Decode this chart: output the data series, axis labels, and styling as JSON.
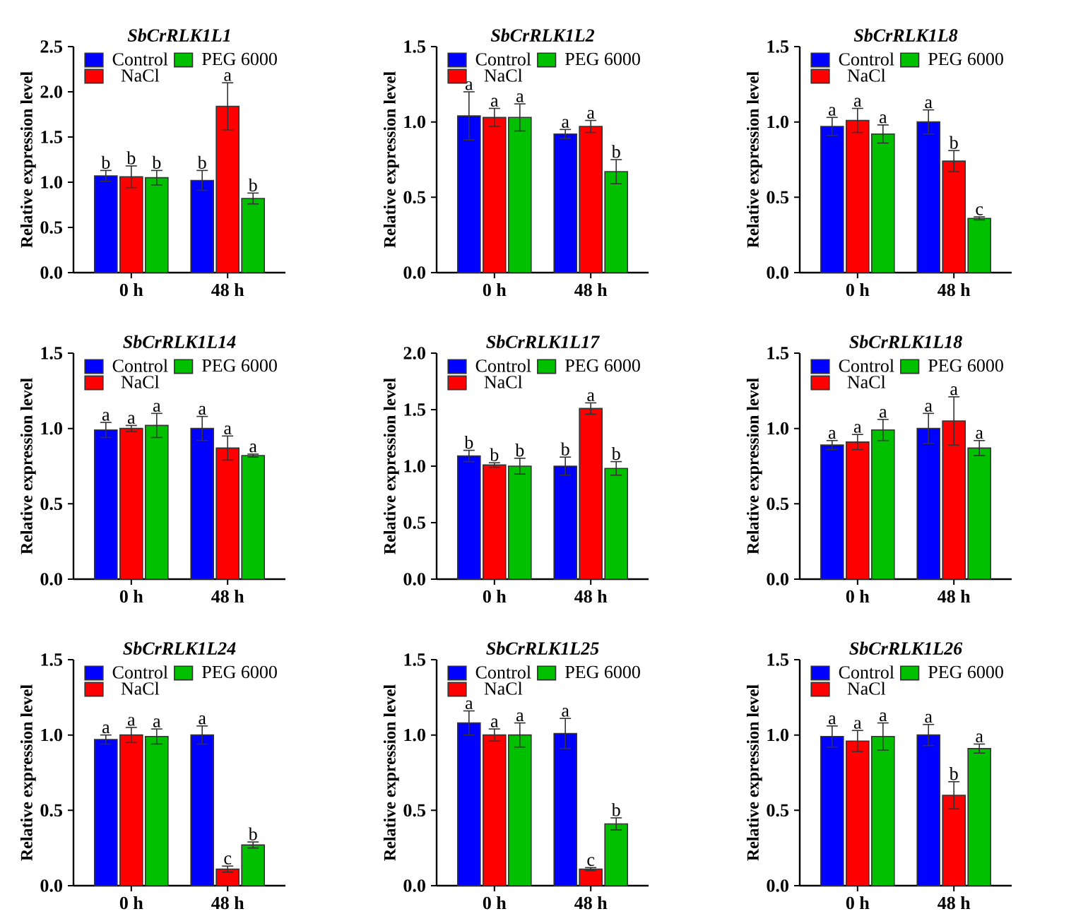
{
  "chart_data": [
    {
      "type": "bar",
      "title": "SbCrRLK1L1",
      "ylabel": "Relative expression level",
      "categories": [
        "0 h",
        "48 h"
      ],
      "ylim": [
        0,
        2.5
      ],
      "yticks": [
        {
          "value": 0,
          "label": "0.0"
        },
        0.5,
        {
          "value": 1,
          "label": "1.0"
        },
        1.5,
        {
          "value": 2,
          "label": "2.0"
        },
        2.5
      ],
      "legend": "top left",
      "series": [
        {
          "name": "Control",
          "color": "#0000ff",
          "values": [
            1.07,
            1.02
          ],
          "errors": [
            0.06,
            0.11
          ]
        },
        {
          "name": "NaCl",
          "color": "#ff0000",
          "values": [
            1.06,
            1.84
          ],
          "errors": [
            0.12,
            0.26
          ]
        },
        {
          "name": "PEG 6000",
          "color": "#00c000",
          "values": [
            1.05,
            0.82
          ],
          "errors": [
            0.08,
            0.06
          ]
        }
      ],
      "annotations": [
        "b",
        "b",
        "b",
        "b",
        "a",
        "b"
      ]
    },
    {
      "type": "bar",
      "title": "SbCrRLK1L2",
      "ylabel": "Relative expression level",
      "categories": [
        "0 h",
        "48 h"
      ],
      "ylim": [
        0,
        1.5
      ],
      "yticks": [
        {
          "value": 0,
          "label": "0.0"
        },
        0.5,
        {
          "value": 1,
          "label": "1.0"
        },
        1.5
      ],
      "legend": "top left",
      "series": [
        {
          "name": "Control",
          "color": "#0000ff",
          "values": [
            1.04,
            0.92
          ],
          "errors": [
            0.16,
            0.03
          ]
        },
        {
          "name": "NaCl",
          "color": "#ff0000",
          "values": [
            1.03,
            0.97
          ],
          "errors": [
            0.06,
            0.04
          ]
        },
        {
          "name": "PEG 6000",
          "color": "#00c000",
          "values": [
            1.03,
            0.67
          ],
          "errors": [
            0.09,
            0.08
          ]
        }
      ],
      "annotations": [
        "a",
        "a",
        "a",
        "a",
        "a",
        "b"
      ]
    },
    {
      "type": "bar",
      "title": "SbCrRLK1L8",
      "ylabel": "Relative expression level",
      "categories": [
        "0 h",
        "48 h"
      ],
      "ylim": [
        0,
        1.5
      ],
      "yticks": [
        {
          "value": 0,
          "label": "0.0"
        },
        0.5,
        {
          "value": 1,
          "label": "1.0"
        },
        1.5
      ],
      "legend": "top left",
      "series": [
        {
          "name": "Control",
          "color": "#0000ff",
          "values": [
            0.97,
            1.0
          ],
          "errors": [
            0.06,
            0.08
          ]
        },
        {
          "name": "NaCl",
          "color": "#ff0000",
          "values": [
            1.01,
            0.74
          ],
          "errors": [
            0.08,
            0.07
          ]
        },
        {
          "name": "PEG 6000",
          "color": "#00c000",
          "values": [
            0.92,
            0.36
          ],
          "errors": [
            0.06,
            0.01
          ]
        }
      ],
      "annotations": [
        "a",
        "a",
        "a",
        "a",
        "b",
        "c"
      ]
    },
    {
      "type": "bar",
      "title": "SbCrRLK1L14",
      "ylabel": "Relative expression level",
      "categories": [
        "0 h",
        "48 h"
      ],
      "ylim": [
        0,
        1.5
      ],
      "yticks": [
        {
          "value": 0,
          "label": "0.0"
        },
        0.5,
        {
          "value": 1,
          "label": "1.0"
        },
        1.5
      ],
      "legend": "top left",
      "series": [
        {
          "name": "Control",
          "color": "#0000ff",
          "values": [
            0.99,
            1.0
          ],
          "errors": [
            0.05,
            0.08
          ]
        },
        {
          "name": "NaCl",
          "color": "#ff0000",
          "values": [
            1.0,
            0.87
          ],
          "errors": [
            0.02,
            0.08
          ]
        },
        {
          "name": "PEG 6000",
          "color": "#00c000",
          "values": [
            1.02,
            0.82
          ],
          "errors": [
            0.08,
            0.01
          ]
        }
      ],
      "annotations": [
        "a",
        "a",
        "a",
        "a",
        "a",
        "a"
      ]
    },
    {
      "type": "bar",
      "title": "SbCrRLK1L17",
      "ylabel": "Relative expression level",
      "categories": [
        "0 h",
        "48 h"
      ],
      "ylim": [
        0,
        2.0
      ],
      "yticks": [
        {
          "value": 0,
          "label": "0.0"
        },
        0.5,
        {
          "value": 1,
          "label": "1.0"
        },
        1.5,
        {
          "value": 2,
          "label": "2.0"
        }
      ],
      "legend": "top left",
      "series": [
        {
          "name": "Control",
          "color": "#0000ff",
          "values": [
            1.09,
            1.0
          ],
          "errors": [
            0.05,
            0.08
          ]
        },
        {
          "name": "NaCl",
          "color": "#ff0000",
          "values": [
            1.01,
            1.51
          ],
          "errors": [
            0.02,
            0.05
          ]
        },
        {
          "name": "PEG 6000",
          "color": "#00c000",
          "values": [
            1.0,
            0.98
          ],
          "errors": [
            0.07,
            0.06
          ]
        }
      ],
      "annotations": [
        "b",
        "b",
        "b",
        "b",
        "a",
        "b"
      ]
    },
    {
      "type": "bar",
      "title": "SbCrRLK1L18",
      "ylabel": "Relative expression level",
      "categories": [
        "0 h",
        "48 h"
      ],
      "ylim": [
        0,
        1.5
      ],
      "yticks": [
        {
          "value": 0,
          "label": "0.0"
        },
        0.5,
        {
          "value": 1,
          "label": "1.0"
        },
        1.5
      ],
      "legend": "top left",
      "series": [
        {
          "name": "Control",
          "color": "#0000ff",
          "values": [
            0.89,
            1.0
          ],
          "errors": [
            0.03,
            0.1
          ]
        },
        {
          "name": "NaCl",
          "color": "#ff0000",
          "values": [
            0.91,
            1.05
          ],
          "errors": [
            0.05,
            0.16
          ]
        },
        {
          "name": "PEG 6000",
          "color": "#00c000",
          "values": [
            0.99,
            0.87
          ],
          "errors": [
            0.07,
            0.05
          ]
        }
      ],
      "annotations": [
        "a",
        "a",
        "a",
        "a",
        "a",
        "a"
      ]
    },
    {
      "type": "bar",
      "title": "SbCrRLK1L24",
      "ylabel": "Relative expression level",
      "categories": [
        "0 h",
        "48 h"
      ],
      "ylim": [
        0,
        1.5
      ],
      "yticks": [
        {
          "value": 0,
          "label": "0.0"
        },
        0.5,
        {
          "value": 1,
          "label": "1.0"
        },
        1.5
      ],
      "legend": "top left",
      "series": [
        {
          "name": "Control",
          "color": "#0000ff",
          "values": [
            0.97,
            1.0
          ],
          "errors": [
            0.03,
            0.06
          ]
        },
        {
          "name": "NaCl",
          "color": "#ff0000",
          "values": [
            1.0,
            0.11
          ],
          "errors": [
            0.05,
            0.02
          ]
        },
        {
          "name": "PEG 6000",
          "color": "#00c000",
          "values": [
            0.99,
            0.27
          ],
          "errors": [
            0.05,
            0.02
          ]
        }
      ],
      "annotations": [
        "a",
        "a",
        "a",
        "a",
        "c",
        "b"
      ]
    },
    {
      "type": "bar",
      "title": "SbCrRLK1L25",
      "ylabel": "Relative expression level",
      "categories": [
        "0 h",
        "48 h"
      ],
      "ylim": [
        0,
        1.5
      ],
      "yticks": [
        {
          "value": 0,
          "label": "0.0"
        },
        0.5,
        {
          "value": 1,
          "label": "1.0"
        },
        1.5
      ],
      "legend": "top left",
      "series": [
        {
          "name": "Control",
          "color": "#0000ff",
          "values": [
            1.08,
            1.01
          ],
          "errors": [
            0.08,
            0.1
          ]
        },
        {
          "name": "NaCl",
          "color": "#ff0000",
          "values": [
            1.0,
            0.11
          ],
          "errors": [
            0.04,
            0.01
          ]
        },
        {
          "name": "PEG 6000",
          "color": "#00c000",
          "values": [
            1.0,
            0.41
          ],
          "errors": [
            0.08,
            0.04
          ]
        }
      ],
      "annotations": [
        "a",
        "a",
        "a",
        "a",
        "c",
        "b"
      ]
    },
    {
      "type": "bar",
      "title": "SbCrRLK1L26",
      "ylabel": "Relative expression level",
      "categories": [
        "0 h",
        "48 h"
      ],
      "ylim": [
        0,
        1.5
      ],
      "yticks": [
        {
          "value": 0,
          "label": "0.0"
        },
        0.5,
        {
          "value": 1,
          "label": "1.0"
        },
        1.5
      ],
      "legend": "top left",
      "series": [
        {
          "name": "Control",
          "color": "#0000ff",
          "values": [
            0.99,
            1.0
          ],
          "errors": [
            0.07,
            0.07
          ]
        },
        {
          "name": "NaCl",
          "color": "#ff0000",
          "values": [
            0.96,
            0.6
          ],
          "errors": [
            0.07,
            0.09
          ]
        },
        {
          "name": "PEG 6000",
          "color": "#00c000",
          "values": [
            0.99,
            0.91
          ],
          "errors": [
            0.09,
            0.03
          ]
        }
      ],
      "annotations": [
        "a",
        "a",
        "a",
        "a",
        "b",
        "a"
      ]
    }
  ]
}
